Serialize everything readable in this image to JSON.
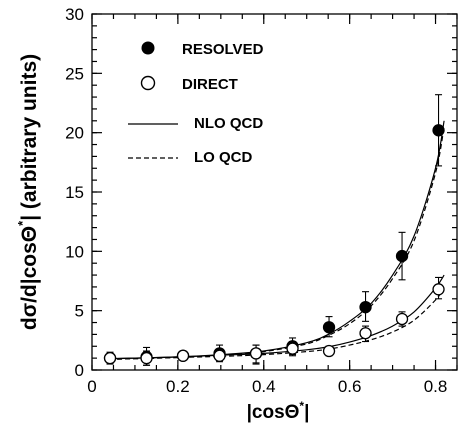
{
  "chart_data": {
    "type": "scatter",
    "xlabel_main": "|cosΘ",
    "xlabel_sup": "*",
    "xlabel_end": "|",
    "ylabel_main": "dσ/d|cosΘ",
    "ylabel_sup": "*",
    "ylabel_end": "| (arbitrary units)",
    "xlim": [
      0,
      0.85
    ],
    "ylim": [
      0,
      30
    ],
    "x_ticks": [
      0,
      0.2,
      0.4,
      0.6,
      0.8
    ],
    "x_tick_labels": [
      "0",
      "0.2",
      "0.4",
      "0.6",
      "0.8"
    ],
    "y_ticks": [
      0,
      5,
      10,
      15,
      20,
      25,
      30
    ],
    "y_tick_labels": [
      "0",
      "5",
      "10",
      "15",
      "20",
      "25",
      "30"
    ],
    "legend": [
      {
        "label": "RESOLVED",
        "marker": "filled-circle"
      },
      {
        "label": "DIRECT",
        "marker": "open-circle"
      },
      {
        "label": "NLO QCD",
        "line": "solid"
      },
      {
        "label": "LO QCD",
        "line": "dashed"
      }
    ],
    "series": [
      {
        "name": "RESOLVED",
        "marker": "filled-circle",
        "x": [
          0.042,
          0.127,
          0.212,
          0.297,
          0.382,
          0.467,
          0.552,
          0.637,
          0.722,
          0.807
        ],
        "y": [
          1.0,
          1.1,
          1.2,
          1.4,
          1.4,
          2.0,
          3.6,
          5.3,
          9.6,
          20.2
        ],
        "err_low": [
          0.5,
          0.7,
          0.4,
          0.6,
          0.9,
          0.7,
          0.8,
          1.2,
          2.0,
          3.0
        ],
        "err_high": [
          0.5,
          0.8,
          0.4,
          0.7,
          0.7,
          0.7,
          0.9,
          1.3,
          2.0,
          3.0
        ]
      },
      {
        "name": "DIRECT",
        "marker": "open-circle",
        "x": [
          0.042,
          0.127,
          0.212,
          0.297,
          0.382,
          0.467,
          0.552,
          0.637,
          0.722,
          0.807
        ],
        "y": [
          1.0,
          1.0,
          1.2,
          1.2,
          1.4,
          1.8,
          1.6,
          3.1,
          4.3,
          6.8
        ],
        "err_low": [
          0.4,
          0.6,
          0.3,
          0.5,
          0.8,
          0.6,
          0.4,
          0.7,
          0.6,
          0.8
        ],
        "err_high": [
          0.4,
          0.6,
          0.3,
          0.5,
          0.7,
          0.6,
          0.4,
          0.6,
          0.6,
          1.0
        ]
      }
    ],
    "curves": [
      {
        "name": "NLO QCD",
        "style": "solid",
        "x": [
          0.04,
          0.1,
          0.2,
          0.3,
          0.4,
          0.5,
          0.55,
          0.6,
          0.65,
          0.7,
          0.75,
          0.8,
          0.82
        ],
        "y": [
          0.95,
          1.0,
          1.1,
          1.3,
          1.6,
          2.3,
          3.0,
          4.1,
          5.6,
          8.0,
          11.3,
          17.0,
          21.0
        ]
      },
      {
        "name": "LO QCD",
        "style": "dashed",
        "x": [
          0.04,
          0.1,
          0.2,
          0.3,
          0.4,
          0.5,
          0.55,
          0.6,
          0.65,
          0.7,
          0.75,
          0.8,
          0.82
        ],
        "y": [
          0.9,
          0.95,
          1.05,
          1.25,
          1.55,
          2.2,
          2.9,
          3.9,
          5.4,
          7.7,
          10.9,
          16.6,
          20.5
        ]
      },
      {
        "name": "NLO QCD (direct)",
        "style": "solid",
        "x": [
          0.04,
          0.1,
          0.2,
          0.3,
          0.4,
          0.5,
          0.55,
          0.6,
          0.65,
          0.7,
          0.75,
          0.8,
          0.82
        ],
        "y": [
          0.95,
          1.0,
          1.1,
          1.25,
          1.4,
          1.7,
          1.95,
          2.35,
          2.9,
          3.7,
          4.9,
          6.9,
          8.0
        ]
      },
      {
        "name": "LO QCD (direct)",
        "style": "dashed",
        "x": [
          0.04,
          0.1,
          0.2,
          0.3,
          0.4,
          0.5,
          0.55,
          0.6,
          0.65,
          0.7,
          0.75,
          0.8,
          0.82
        ],
        "y": [
          0.9,
          0.95,
          1.05,
          1.15,
          1.3,
          1.55,
          1.75,
          2.1,
          2.55,
          3.2,
          4.2,
          5.9,
          6.9
        ]
      }
    ]
  }
}
